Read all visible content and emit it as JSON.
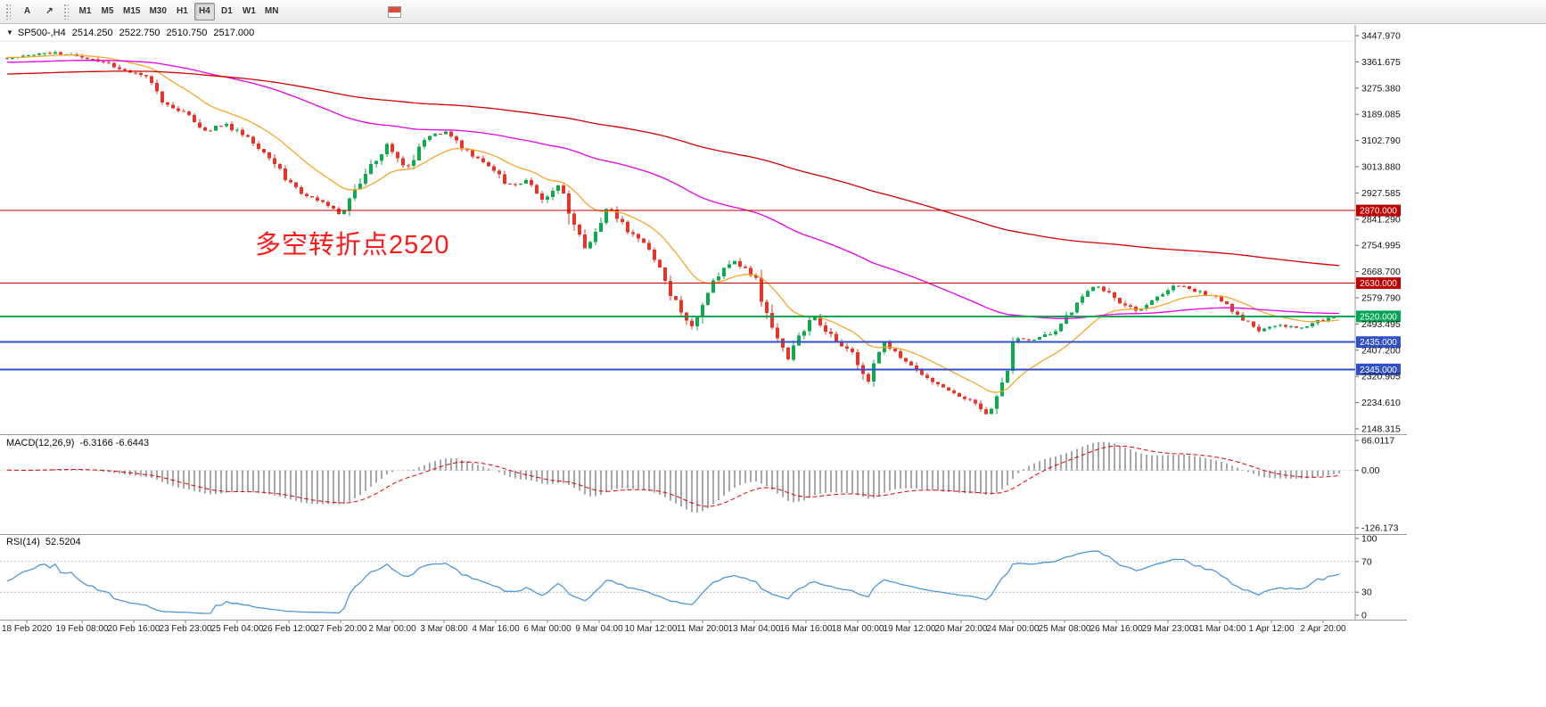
{
  "toolbar": {
    "tools": [
      {
        "label": "A"
      },
      {
        "label": "↗"
      }
    ],
    "timeframes": [
      "M1",
      "M5",
      "M15",
      "M30",
      "H1",
      "H4",
      "D1",
      "W1",
      "MN"
    ],
    "active_timeframe": "H4"
  },
  "chart_header": {
    "menu_arrow_glyph": "▼",
    "symbol_period": "SP500-,H4",
    "open": "2514.250",
    "high": "2522.750",
    "low": "2510.750",
    "close": "2517.000"
  },
  "colors": {
    "bull": "#0faa4e",
    "bear": "#e8352a",
    "macd_hist": "#a8a8a8",
    "macd_signal": "#e00000",
    "rsi_line": "#4f96d8",
    "axis_text": "#111111"
  },
  "chart_data": {
    "type": "candlestick",
    "symbol": "SP500-",
    "timeframe": "H4",
    "title": "SP500-,H4 2514.250 2522.750 2510.750 2517.000",
    "ylim": [
      2148.315,
      3447.97
    ],
    "price_axis_labels": [
      "3447.970",
      "3361.675",
      "3275.380",
      "3189.085",
      "3102.790",
      "3013.880",
      "2927.585",
      "2841.290",
      "2754.995",
      "2668.700",
      "2579.790",
      "2493.495",
      "2407.200",
      "2320.905",
      "2234.610",
      "2148.315"
    ],
    "time_labels": [
      "18 Feb 2020",
      "19 Feb 08:00",
      "20 Feb 16:00",
      "23 Feb 23:00",
      "25 Feb 04:00",
      "26 Feb 12:00",
      "27 Feb 20:00",
      "2 Mar 00:00",
      "3 Mar 08:00",
      "4 Mar 16:00",
      "6 Mar 00:00",
      "9 Mar 04:00",
      "10 Mar 12:00",
      "11 Mar 20:00",
      "13 Mar 04:00",
      "16 Mar 16:00",
      "18 Mar 00:00",
      "19 Mar 12:00",
      "20 Mar 20:00",
      "24 Mar 00:00",
      "25 Mar 08:00",
      "26 Mar 16:00",
      "29 Mar 23:00",
      "31 Mar 04:00",
      "1 Apr 12:00",
      "2 Apr 20:00"
    ],
    "hlines": [
      {
        "price": 2870.0,
        "label": "2870.000",
        "color": "#c00000",
        "width": 1
      },
      {
        "price": 2630.0,
        "label": "2630.000",
        "color": "#c00000",
        "width": 1
      },
      {
        "price": 2520.0,
        "label": "2520.000",
        "color": "#00a651",
        "width": 2
      },
      {
        "price": 2435.0,
        "label": "2435.000",
        "color": "#3050c8",
        "width": 2
      },
      {
        "price": 2345.0,
        "label": "2345.000",
        "color": "#3050c8",
        "width": 2
      }
    ],
    "annotations": [
      {
        "text": "多空转折点2520",
        "color": "#ff1a1a"
      }
    ],
    "moving_averages": [
      {
        "period": 16,
        "color": "#f4a72b",
        "name": "fast-ma"
      },
      {
        "period": 90,
        "color": "#e800e8",
        "name": "medium-ma"
      },
      {
        "period": 220,
        "color": "#d40000",
        "name": "slow-ma"
      }
    ],
    "candles": {
      "visible": 250,
      "history": 450,
      "seed": 13,
      "history_days": 60,
      "visible_days": 33
    },
    "history_path": [
      [
        -60,
        3095
      ],
      [
        -55,
        3125
      ],
      [
        -50,
        3150
      ],
      [
        -46,
        3115
      ],
      [
        -42,
        3190
      ],
      [
        -38,
        3228
      ],
      [
        -34,
        3248
      ],
      [
        -30,
        3262
      ],
      [
        -27,
        3288
      ],
      [
        -24,
        3302
      ],
      [
        -21,
        3322
      ],
      [
        -18,
        3248
      ],
      [
        -16,
        3282
      ],
      [
        -13,
        3322
      ],
      [
        -10,
        3348
      ],
      [
        -7,
        3358
      ],
      [
        -4,
        3372
      ],
      [
        -2,
        3382
      ],
      [
        -1,
        3386
      ]
    ],
    "price_path": [
      [
        0,
        3370
      ],
      [
        0.8,
        3386
      ],
      [
        1,
        3393
      ],
      [
        1.5,
        3389
      ],
      [
        2,
        3373
      ],
      [
        2.6,
        3358
      ],
      [
        3,
        3337
      ],
      [
        3.6,
        3308
      ],
      [
        4,
        3225
      ],
      [
        4.5,
        3196
      ],
      [
        5,
        3128
      ],
      [
        5.5,
        3158
      ],
      [
        6,
        3116
      ],
      [
        6.5,
        3058
      ],
      [
        7,
        2978
      ],
      [
        7.5,
        2918
      ],
      [
        8,
        2890
      ],
      [
        8.4,
        2856
      ],
      [
        8.8,
        2952
      ],
      [
        9,
        3000
      ],
      [
        9.5,
        3088
      ],
      [
        10,
        3003
      ],
      [
        10.4,
        3112
      ],
      [
        11,
        3130
      ],
      [
        11.5,
        3058
      ],
      [
        12,
        3024
      ],
      [
        12.5,
        2950
      ],
      [
        13,
        2972
      ],
      [
        13.3,
        2901
      ],
      [
        13.8,
        2962
      ],
      [
        14,
        2850
      ],
      [
        14.4,
        2746
      ],
      [
        15,
        2882
      ],
      [
        15.5,
        2798
      ],
      [
        16,
        2741
      ],
      [
        16.5,
        2598
      ],
      [
        17,
        2480
      ],
      [
        17.5,
        2622
      ],
      [
        18,
        2711
      ],
      [
        18.6,
        2648
      ],
      [
        19,
        2478
      ],
      [
        19.4,
        2386
      ],
      [
        20,
        2529
      ],
      [
        20.5,
        2452
      ],
      [
        21,
        2398
      ],
      [
        21.35,
        2293
      ],
      [
        21.7,
        2438
      ],
      [
        22,
        2409
      ],
      [
        22.5,
        2352
      ],
      [
        23,
        2304
      ],
      [
        23.5,
        2262
      ],
      [
        24,
        2237
      ],
      [
        24.25,
        2183
      ],
      [
        24.7,
        2302
      ],
      [
        25,
        2447
      ],
      [
        25.5,
        2443
      ],
      [
        26,
        2475
      ],
      [
        26.5,
        2556
      ],
      [
        27,
        2630
      ],
      [
        27.5,
        2574
      ],
      [
        28,
        2541
      ],
      [
        28.6,
        2592
      ],
      [
        29,
        2626
      ],
      [
        29.5,
        2602
      ],
      [
        30,
        2584
      ],
      [
        30.5,
        2528
      ],
      [
        31,
        2470
      ],
      [
        31.5,
        2492
      ],
      [
        32,
        2481
      ],
      [
        32.5,
        2506
      ],
      [
        33,
        2517
      ]
    ],
    "indicators": {
      "macd": {
        "name": "MACD(12,26,9)",
        "values": "-6.3166 -6.6443",
        "fast": 12,
        "slow": 26,
        "signal": 9,
        "scale": [
          {
            "v": 66.0117,
            "label": "66.0117"
          },
          {
            "v": 0,
            "label": "0.00"
          },
          {
            "v": -126.173,
            "label": "-126.173"
          }
        ]
      },
      "rsi": {
        "name": "RSI(14)",
        "value": "52.5204",
        "period": 14,
        "scale": [
          {
            "v": 100,
            "label": "100"
          },
          {
            "v": 70,
            "label": "70"
          },
          {
            "v": 30,
            "label": "30"
          },
          {
            "v": 0,
            "label": "0"
          }
        ],
        "levels": [
          70,
          30
        ]
      }
    }
  }
}
